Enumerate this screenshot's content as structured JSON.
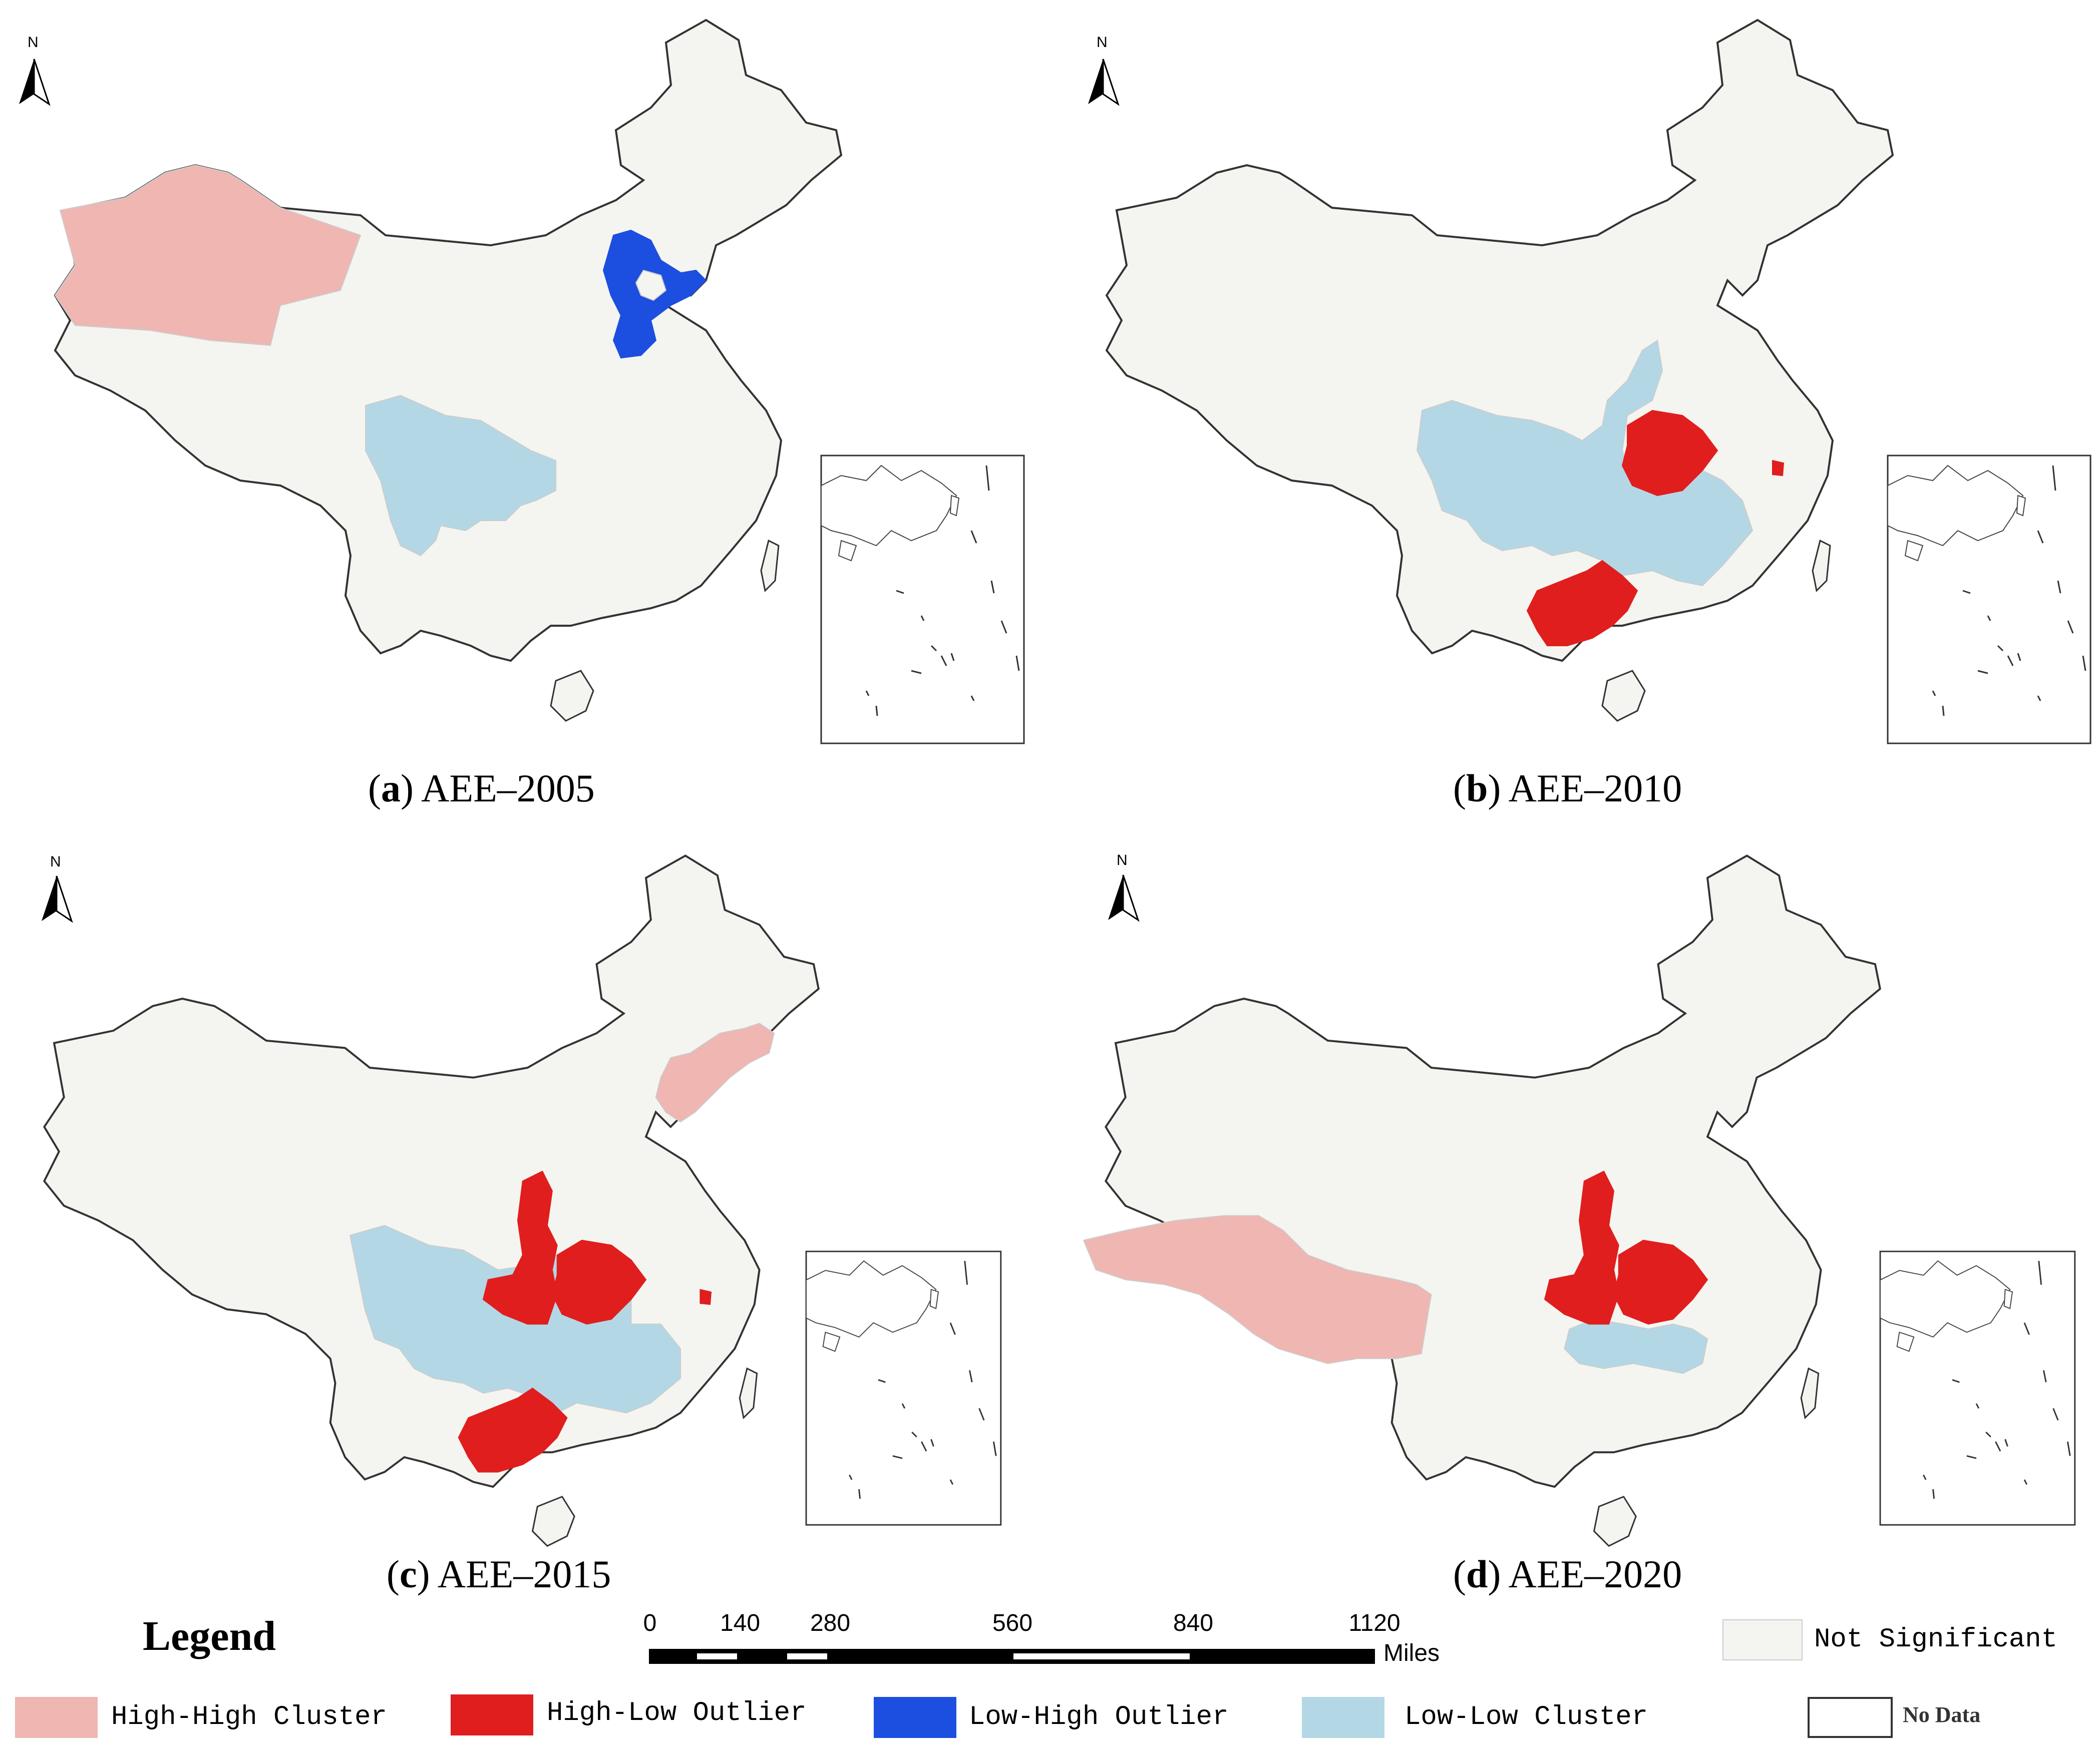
{
  "colors": {
    "high_high": "#f0b6b2",
    "high_low": "#e01e1e",
    "low_high": "#1c4fe0",
    "low_low": "#b4d7e6",
    "not_significant": "#f4f5f0",
    "border": "#333333"
  },
  "north_label": "N",
  "panels": [
    {
      "id": "a",
      "letter": "a",
      "title": "AEE–2005"
    },
    {
      "id": "b",
      "letter": "b",
      "title": "AEE–2010"
    },
    {
      "id": "c",
      "letter": "c",
      "title": "AEE–2015"
    },
    {
      "id": "d",
      "letter": "d",
      "title": "AEE–2020"
    }
  ],
  "legend": {
    "title": "Legend",
    "not_significant": "Not Significant",
    "high_high": "High-High Cluster",
    "high_low": "High-Low Outlier",
    "low_high": "Low-High Outlier",
    "low_low": "Low-Low Cluster",
    "no_data": "No Data"
  },
  "scale_bar": {
    "ticks": [
      "0",
      "140",
      "280",
      "560",
      "840",
      "1120"
    ],
    "unit": "Miles"
  }
}
